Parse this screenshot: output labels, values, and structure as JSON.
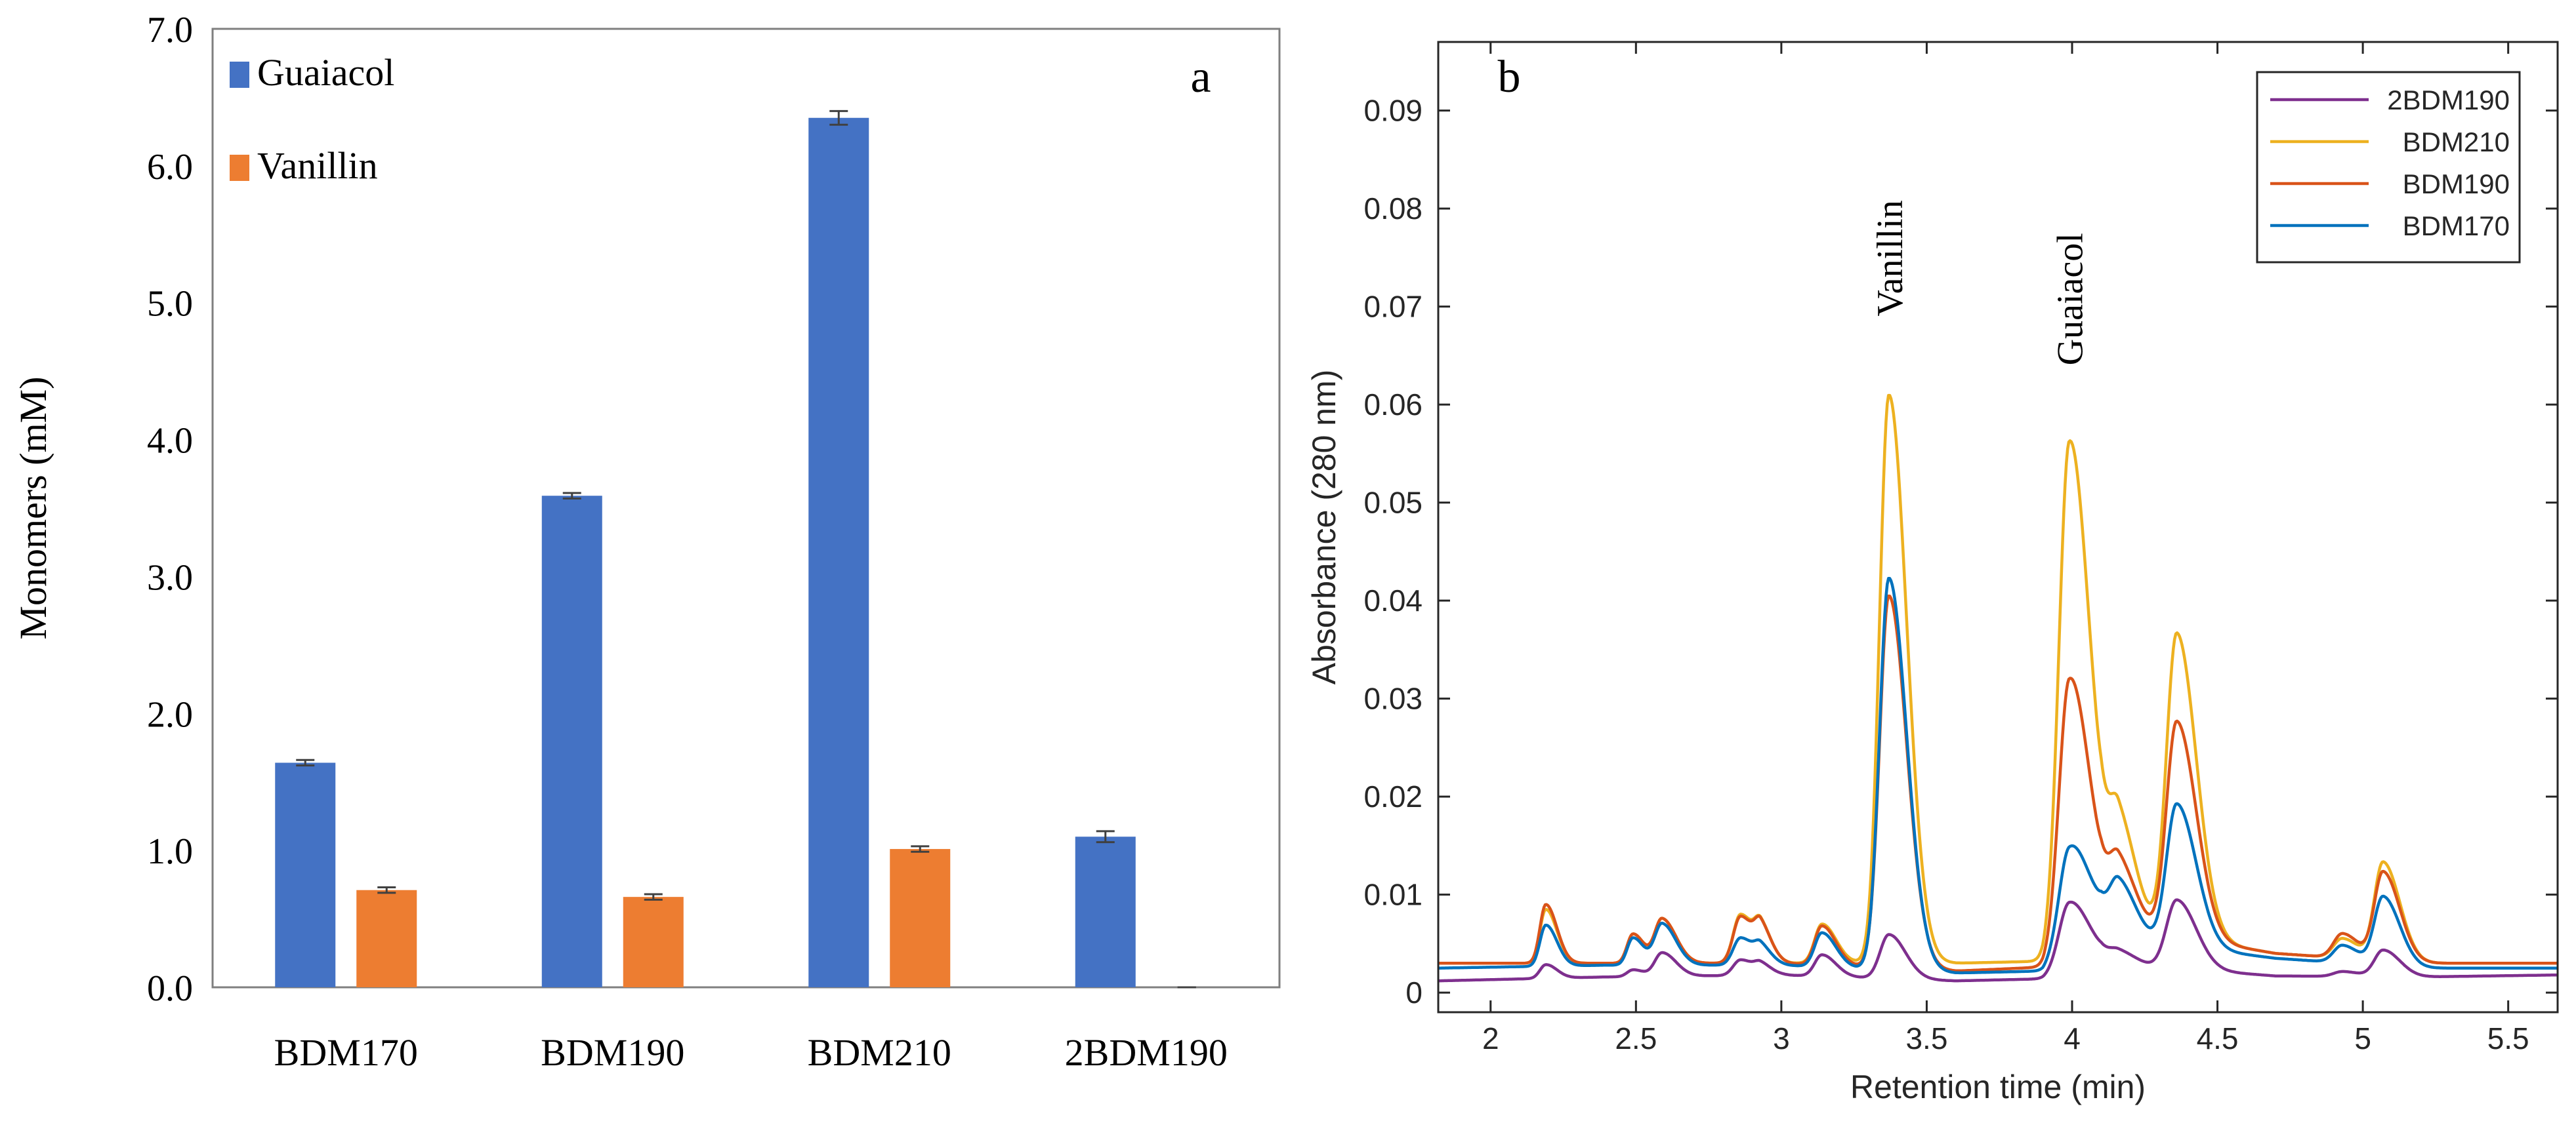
{
  "chart_data": [
    {
      "panel": "a",
      "type": "bar",
      "title": "",
      "panel_label": "a",
      "xlabel": "",
      "ylabel": "Monomers (mM)",
      "ylim": [
        0,
        7
      ],
      "yticks": [
        "0.0",
        "1.0",
        "2.0",
        "3.0",
        "4.0",
        "5.0",
        "6.0",
        "7.0"
      ],
      "legend_position": "top-left",
      "categories": [
        "BDM170",
        "BDM190",
        "BDM210",
        "2BDM190"
      ],
      "series": [
        {
          "name": "Guaiacol",
          "color": "#4472C4",
          "values": [
            1.64,
            3.59,
            6.35,
            1.1
          ],
          "errors": [
            0.02,
            0.02,
            0.05,
            0.04
          ]
        },
        {
          "name": "Vanillin",
          "color": "#ED7D31",
          "values": [
            0.71,
            0.66,
            1.01,
            0.0
          ],
          "errors": [
            0.02,
            0.02,
            0.02,
            0.0
          ]
        }
      ]
    },
    {
      "panel": "b",
      "type": "line",
      "title": "",
      "panel_label": "b",
      "xlabel": "Retention time (min)",
      "ylabel": "Absorbance (280 nm)",
      "xlim": [
        1.82,
        5.67
      ],
      "ylim": [
        -0.002,
        0.097
      ],
      "xticks": [
        "2",
        "2.5",
        "3",
        "3.5",
        "4",
        "4.5",
        "5",
        "5.5"
      ],
      "yticks": [
        "0",
        "0.01",
        "0.02",
        "0.03",
        "0.04",
        "0.05",
        "0.06",
        "0.07",
        "0.08",
        "0.09"
      ],
      "legend_position": "top-right",
      "annotations": [
        {
          "text": "Vanillin",
          "x": 3.37,
          "y": 0.069
        },
        {
          "text": "Guaiacol",
          "x": 3.99,
          "y": 0.064
        }
      ],
      "series": [
        {
          "name": "2BDM190",
          "color": "#7E2F8E",
          "baseline": [
            [
              1.82,
              0.0012
            ],
            [
              2.4,
              0.0016
            ],
            [
              3.0,
              0.0018
            ],
            [
              3.6,
              0.0012
            ],
            [
              3.9,
              0.0014
            ],
            [
              4.1,
              0.0032
            ],
            [
              4.3,
              0.0026
            ],
            [
              4.7,
              0.0017
            ],
            [
              5.2,
              0.0016
            ],
            [
              5.67,
              0.0018
            ]
          ],
          "peaks": [
            [
              2.19,
              0.0014,
              0.02
            ],
            [
              2.49,
              0.0007,
              0.02
            ],
            [
              2.59,
              0.0024,
              0.025
            ],
            [
              2.86,
              0.0016,
              0.025
            ],
            [
              2.93,
              0.0009,
              0.02
            ],
            [
              3.14,
              0.0022,
              0.025
            ],
            [
              3.37,
              0.0045,
              0.03
            ],
            [
              3.99,
              0.007,
              0.035
            ],
            [
              4.16,
              0.0012,
              0.03
            ],
            [
              4.36,
              0.007,
              0.035
            ],
            [
              4.93,
              0.0005,
              0.03
            ],
            [
              5.07,
              0.0027,
              0.03
            ]
          ]
        },
        {
          "name": "BDM210",
          "color": "#EDB120",
          "baseline": [
            [
              1.82,
              0.003
            ],
            [
              2.4,
              0.003
            ],
            [
              3.0,
              0.003
            ],
            [
              3.6,
              0.003
            ],
            [
              3.9,
              0.0032
            ],
            [
              4.1,
              0.01
            ],
            [
              4.3,
              0.006
            ],
            [
              4.7,
              0.004
            ],
            [
              5.2,
              0.003
            ],
            [
              5.67,
              0.003
            ]
          ],
          "peaks": [
            [
              2.19,
              0.0055,
              0.02
            ],
            [
              2.49,
              0.003,
              0.02
            ],
            [
              2.59,
              0.0045,
              0.025
            ],
            [
              2.86,
              0.005,
              0.025
            ],
            [
              2.93,
              0.003,
              0.02
            ],
            [
              3.14,
              0.004,
              0.025
            ],
            [
              3.37,
              0.058,
              0.032
            ],
            [
              3.99,
              0.05,
              0.035
            ],
            [
              4.16,
              0.009,
              0.03
            ],
            [
              4.36,
              0.031,
              0.035
            ],
            [
              4.93,
              0.002,
              0.03
            ],
            [
              5.07,
              0.01,
              0.03
            ]
          ]
        },
        {
          "name": "BDM190",
          "color": "#D95319",
          "baseline": [
            [
              1.82,
              0.003
            ],
            [
              2.4,
              0.003
            ],
            [
              3.0,
              0.003
            ],
            [
              3.6,
              0.0022
            ],
            [
              3.9,
              0.0026
            ],
            [
              4.1,
              0.008
            ],
            [
              4.3,
              0.006
            ],
            [
              4.7,
              0.004
            ],
            [
              5.2,
              0.003
            ],
            [
              5.67,
              0.003
            ]
          ],
          "peaks": [
            [
              2.19,
              0.006,
              0.02
            ],
            [
              2.49,
              0.003,
              0.02
            ],
            [
              2.59,
              0.0045,
              0.025
            ],
            [
              2.86,
              0.0048,
              0.025
            ],
            [
              2.93,
              0.003,
              0.02
            ],
            [
              3.14,
              0.004,
              0.025
            ],
            [
              3.37,
              0.038,
              0.032
            ],
            [
              3.99,
              0.027,
              0.035
            ],
            [
              4.16,
              0.006,
              0.03
            ],
            [
              4.36,
              0.022,
              0.035
            ],
            [
              4.93,
              0.0025,
              0.03
            ],
            [
              5.07,
              0.009,
              0.03
            ]
          ]
        },
        {
          "name": "BDM170",
          "color": "#0072BD",
          "baseline": [
            [
              1.82,
              0.0025
            ],
            [
              2.4,
              0.0028
            ],
            [
              3.0,
              0.0028
            ],
            [
              3.6,
              0.002
            ],
            [
              3.9,
              0.0022
            ],
            [
              4.1,
              0.007
            ],
            [
              4.3,
              0.005
            ],
            [
              4.7,
              0.0035
            ],
            [
              5.2,
              0.0025
            ],
            [
              5.67,
              0.0025
            ]
          ],
          "peaks": [
            [
              2.19,
              0.0042,
              0.02
            ],
            [
              2.49,
              0.0028,
              0.02
            ],
            [
              2.59,
              0.0042,
              0.025
            ],
            [
              2.86,
              0.0028,
              0.025
            ],
            [
              2.93,
              0.0015,
              0.02
            ],
            [
              3.14,
              0.0035,
              0.025
            ],
            [
              3.37,
              0.04,
              0.032
            ],
            [
              3.99,
              0.0105,
              0.035
            ],
            [
              4.16,
              0.005,
              0.03
            ],
            [
              4.36,
              0.0145,
              0.035
            ],
            [
              4.93,
              0.0018,
              0.03
            ],
            [
              5.07,
              0.007,
              0.03
            ]
          ]
        }
      ]
    }
  ]
}
